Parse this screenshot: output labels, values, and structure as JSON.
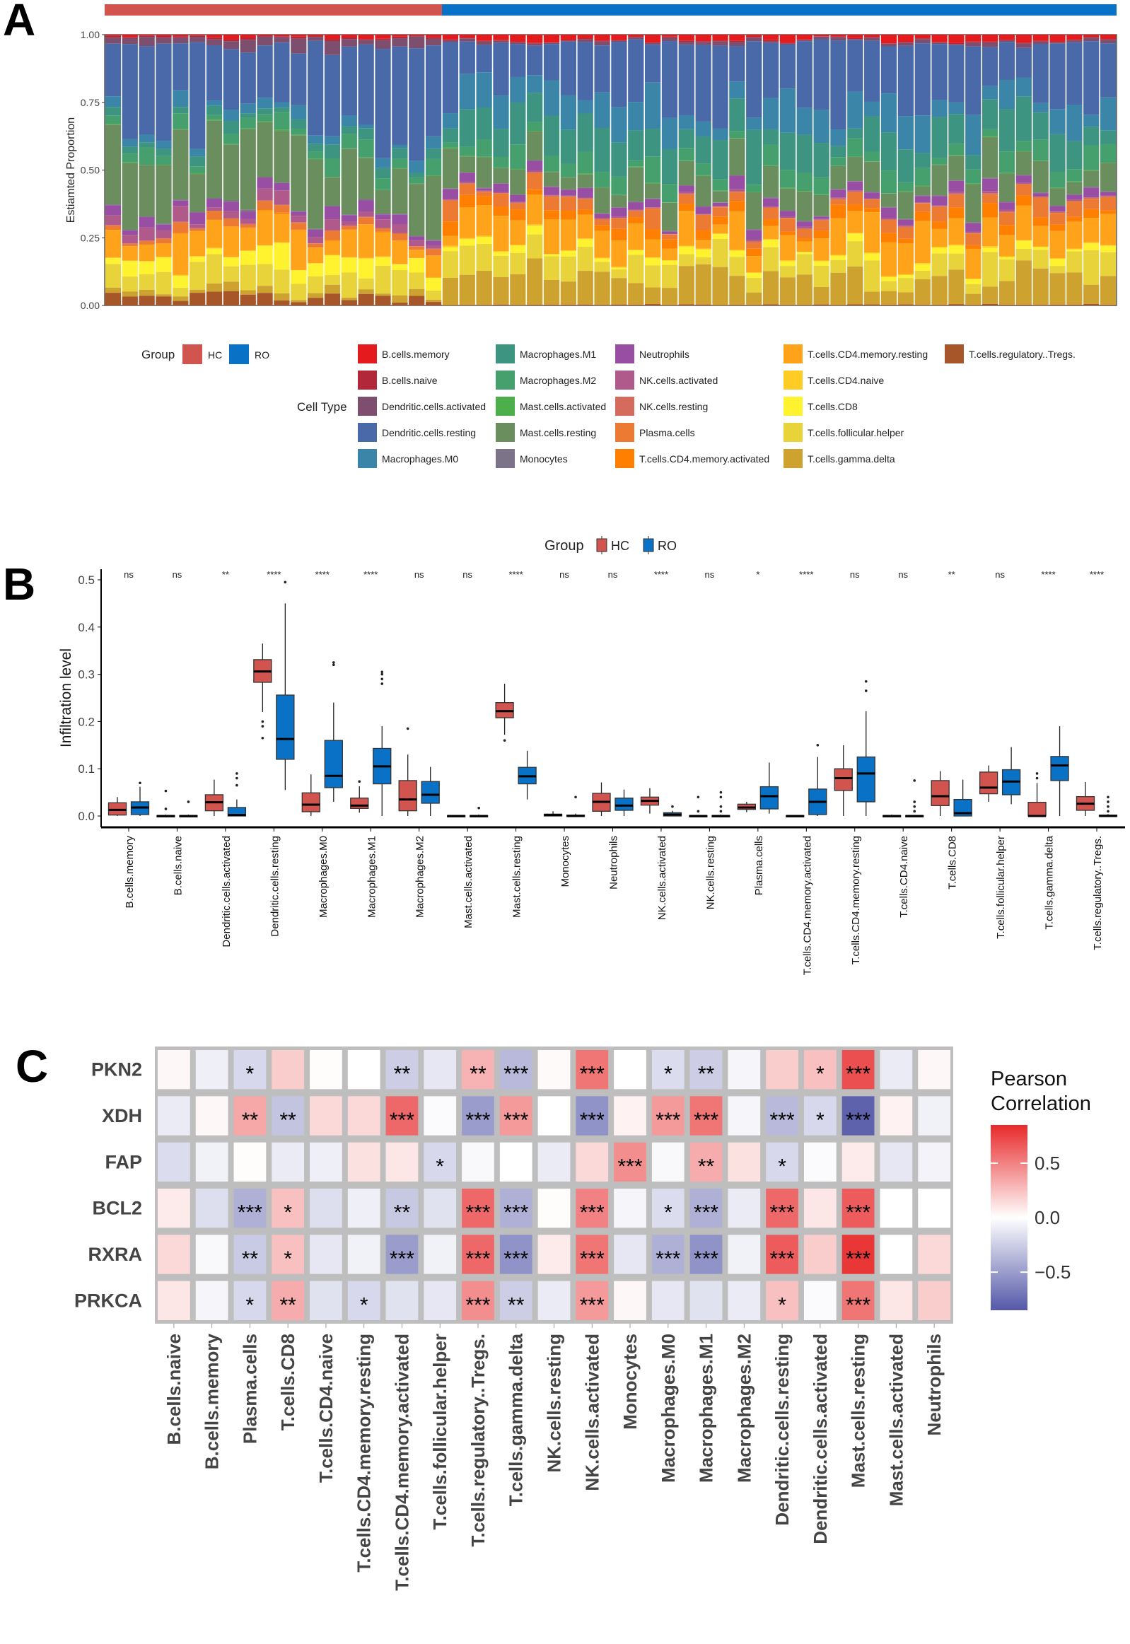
{
  "panel_letters": {
    "a": "A",
    "b": "B",
    "c": "C"
  },
  "chart_data": [
    {
      "type": "bar",
      "stacked": true,
      "panel": "A",
      "ylabel": "Estiamted Proportion",
      "ylim": [
        0,
        1
      ],
      "yticks": [
        "0.00",
        "0.25",
        "0.50",
        "0.75",
        "1.00"
      ],
      "group_legend_title": "Group",
      "celltype_legend_title": "Cell Type",
      "groups": [
        {
          "name": "HC",
          "color": "#D2544E",
          "n_samples": 20
        },
        {
          "name": "RO",
          "color": "#0A72C6",
          "n_samples": 40
        }
      ],
      "cell_types": [
        {
          "name": "B.cells.memory",
          "color": "#E41A1C",
          "hc": 0.01,
          "ro": 0.02
        },
        {
          "name": "B.cells.naive",
          "color": "#B2283A",
          "hc": 0.005,
          "ro": 0.003
        },
        {
          "name": "Dendritic.cells.activated",
          "color": "#7E4E6F",
          "hc": 0.03,
          "ro": 0.01
        },
        {
          "name": "Dendritic.cells.resting",
          "color": "#4A69A8",
          "hc": 0.31,
          "ro": 0.2
        },
        {
          "name": "Macrophages.M0",
          "color": "#3A85A8",
          "hc": 0.03,
          "ro": 0.1
        },
        {
          "name": "Macrophages.M1",
          "color": "#3D9480",
          "hc": 0.03,
          "ro": 0.11
        },
        {
          "name": "Macrophages.M2",
          "color": "#46A06E",
          "hc": 0.04,
          "ro": 0.05
        },
        {
          "name": "Mast.cells.activated",
          "color": "#4DAF4A",
          "hc": 0.002,
          "ro": 0.002
        },
        {
          "name": "Mast.cells.resting",
          "color": "#6A8E5E",
          "hc": 0.22,
          "ro": 0.09
        },
        {
          "name": "Monocytes",
          "color": "#7D7389",
          "hc": 0.003,
          "ro": 0.002
        },
        {
          "name": "Neutrophils",
          "color": "#984EA3",
          "hc": 0.03,
          "ro": 0.025
        },
        {
          "name": "NK.cells.activated",
          "color": "#B05A8C",
          "hc": 0.03,
          "ro": 0.004
        },
        {
          "name": "NK.cells.resting",
          "color": "#D46B5C",
          "hc": 0.002,
          "ro": 0.003
        },
        {
          "name": "Plasma.cells",
          "color": "#EC7A32",
          "hc": 0.02,
          "ro": 0.045
        },
        {
          "name": "T.cells.CD4.memory.activated",
          "color": "#FF7F00",
          "hc": 0.002,
          "ro": 0.035
        },
        {
          "name": "T.cells.CD4.memory.resting",
          "color": "#FFA41A",
          "hc": 0.08,
          "ro": 0.09
        },
        {
          "name": "T.cells.CD4.naive",
          "color": "#FFCC26",
          "hc": 0.002,
          "ro": 0.003
        },
        {
          "name": "T.cells.CD8",
          "color": "#FFF22E",
          "hc": 0.05,
          "ro": 0.02
        },
        {
          "name": "T.cells.follicular.helper",
          "color": "#E8D43A",
          "hc": 0.07,
          "ro": 0.075
        },
        {
          "name": "T.cells.gamma.delta",
          "color": "#CDA22E",
          "hc": 0.02,
          "ro": 0.1
        },
        {
          "name": "T.cells.regulatory..Tregs.",
          "color": "#A65628",
          "hc": 0.03,
          "ro": 0.003
        }
      ]
    },
    {
      "type": "box",
      "panel": "B",
      "ylabel": "Infiltration level",
      "ylim": [
        0,
        0.5
      ],
      "yticks": [
        "0.0",
        "0.1",
        "0.2",
        "0.3",
        "0.4",
        "0.5"
      ],
      "legend": {
        "title": "Group",
        "position": "top",
        "items": [
          {
            "name": "HC",
            "color": "#D2544E"
          },
          {
            "name": "RO",
            "color": "#0A72C6"
          }
        ]
      },
      "stats_order": [
        "whisker_low",
        "q1",
        "median",
        "q3",
        "whisker_high"
      ],
      "categories": [
        {
          "name": "B.cells.memory",
          "sig": "ns",
          "hc": [
            0,
            0.002,
            0.013,
            0.028,
            0.04
          ],
          "hc_out": [],
          "ro": [
            0,
            0.003,
            0.018,
            0.03,
            0.062
          ],
          "ro_out": [
            0.07
          ]
        },
        {
          "name": "B.cells.naive",
          "sig": "ns",
          "hc": [
            0,
            0,
            0,
            0.001,
            0.003
          ],
          "hc_out": [
            0.015,
            0.053
          ],
          "ro": [
            0,
            0,
            0,
            0.001,
            0.003
          ],
          "ro_out": [
            0.03
          ]
        },
        {
          "name": "Dendritic.cells.activated",
          "sig": "**",
          "hc": [
            0,
            0.011,
            0.029,
            0.045,
            0.077
          ],
          "hc_out": [],
          "ro": [
            0,
            0,
            0.002,
            0.018,
            0.035
          ],
          "ro_out": [
            0.065,
            0.08,
            0.09
          ]
        },
        {
          "name": "Dendritic.cells.resting",
          "sig": "****",
          "hc": [
            0.22,
            0.283,
            0.306,
            0.331,
            0.365
          ],
          "hc_out": [
            0.165,
            0.19,
            0.2
          ],
          "ro": [
            0.055,
            0.12,
            0.163,
            0.256,
            0.45
          ],
          "ro_out": [
            0.495
          ]
        },
        {
          "name": "Macrophages.M0",
          "sig": "****",
          "hc": [
            0,
            0.009,
            0.024,
            0.049,
            0.088
          ],
          "hc_out": [],
          "ro": [
            0.03,
            0.06,
            0.085,
            0.16,
            0.24
          ],
          "ro_out": [
            0.32,
            0.325
          ]
        },
        {
          "name": "Macrophages.M1",
          "sig": "****",
          "hc": [
            0.007,
            0.016,
            0.022,
            0.038,
            0.063
          ],
          "hc_out": [
            0.073
          ],
          "ro": [
            0,
            0.068,
            0.105,
            0.143,
            0.19
          ],
          "ro_out": [
            0.28,
            0.29,
            0.3,
            0.305
          ]
        },
        {
          "name": "Macrophages.M2",
          "sig": "ns",
          "hc": [
            0,
            0.011,
            0.035,
            0.075,
            0.13
          ],
          "hc_out": [
            0.185
          ],
          "ro": [
            0,
            0.027,
            0.045,
            0.073,
            0.104
          ],
          "ro_out": []
        },
        {
          "name": "Mast.cells.activated",
          "sig": "ns",
          "hc": [
            0,
            0,
            0,
            0.001,
            0.002
          ],
          "hc_out": [],
          "ro": [
            0,
            0,
            0,
            0.001,
            0.003
          ],
          "ro_out": [
            0.017
          ]
        },
        {
          "name": "Mast.cells.resting",
          "sig": "****",
          "hc": [
            0.172,
            0.208,
            0.222,
            0.24,
            0.28
          ],
          "hc_out": [
            0.16
          ],
          "ro": [
            0.035,
            0.068,
            0.084,
            0.103,
            0.138
          ],
          "ro_out": []
        },
        {
          "name": "Monocytes",
          "sig": "ns",
          "hc": [
            0,
            0,
            0.002,
            0.004,
            0.01
          ],
          "hc_out": [],
          "ro": [
            0,
            0,
            0,
            0.002,
            0.005
          ],
          "ro_out": [
            0.04
          ]
        },
        {
          "name": "Neutrophils",
          "sig": "ns",
          "hc": [
            0,
            0.01,
            0.03,
            0.048,
            0.071
          ],
          "hc_out": [],
          "ro": [
            0,
            0.012,
            0.022,
            0.038,
            0.056
          ],
          "ro_out": []
        },
        {
          "name": "NK.cells.activated",
          "sig": "****",
          "hc": [
            0.005,
            0.023,
            0.032,
            0.04,
            0.059
          ],
          "hc_out": [],
          "ro": [
            0,
            0,
            0.003,
            0.007,
            0.011
          ],
          "ro_out": [
            0.02
          ]
        },
        {
          "name": "NK.cells.resting",
          "sig": "ns",
          "hc": [
            0,
            0,
            0,
            0.001,
            0.002
          ],
          "hc_out": [
            0.01,
            0.04
          ],
          "ro": [
            0,
            0,
            0,
            0.001,
            0.003
          ],
          "ro_out": [
            0.01,
            0.02,
            0.04,
            0.05
          ]
        },
        {
          "name": "Plasma.cells",
          "sig": "*",
          "hc": [
            0.008,
            0.014,
            0.018,
            0.025,
            0.03
          ],
          "hc_out": [],
          "ro": [
            0.005,
            0.015,
            0.042,
            0.062,
            0.113
          ],
          "ro_out": []
        },
        {
          "name": "T.cells.CD4.memory.activated",
          "sig": "****",
          "hc": [
            0,
            0,
            0,
            0.001,
            0.002
          ],
          "hc_out": [],
          "ro": [
            0,
            0.003,
            0.03,
            0.057,
            0.125
          ],
          "ro_out": [
            0.15
          ]
        },
        {
          "name": "T.cells.CD4.memory.resting",
          "sig": "ns",
          "hc": [
            0,
            0.054,
            0.08,
            0.1,
            0.15
          ],
          "hc_out": [],
          "ro": [
            0,
            0.03,
            0.09,
            0.125,
            0.222
          ],
          "ro_out": [
            0.265,
            0.285
          ]
        },
        {
          "name": "T.cells.CD4.naive",
          "sig": "ns",
          "hc": [
            0,
            0,
            0,
            0.001,
            0.003
          ],
          "hc_out": [],
          "ro": [
            0,
            0,
            0,
            0.001,
            0.002
          ],
          "ro_out": [
            0.01,
            0.02,
            0.03,
            0.075
          ]
        },
        {
          "name": "T.cells.CD8",
          "sig": "**",
          "hc": [
            0,
            0.022,
            0.042,
            0.075,
            0.095
          ],
          "hc_out": [],
          "ro": [
            0,
            0,
            0.006,
            0.035,
            0.077
          ],
          "ro_out": []
        },
        {
          "name": "T.cells.follicular.helper",
          "sig": "ns",
          "hc": [
            0.03,
            0.047,
            0.06,
            0.093,
            0.107
          ],
          "hc_out": [],
          "ro": [
            0.025,
            0.045,
            0.073,
            0.098,
            0.146
          ],
          "ro_out": []
        },
        {
          "name": "T.cells.gamma.delta",
          "sig": "****",
          "hc": [
            0,
            0,
            0,
            0.029,
            0.07
          ],
          "hc_out": [
            0.08,
            0.09
          ],
          "ro": [
            0,
            0.075,
            0.107,
            0.126,
            0.19
          ],
          "ro_out": []
        },
        {
          "name": "T.cells.regulatory..Tregs.",
          "sig": "****",
          "hc": [
            0,
            0.012,
            0.026,
            0.041,
            0.072
          ],
          "hc_out": [],
          "ro": [
            0,
            0,
            0,
            0.002,
            0.004
          ],
          "ro_out": [
            0.01,
            0.02,
            0.03,
            0.04
          ]
        }
      ]
    },
    {
      "type": "heatmap",
      "panel": "C",
      "legend_title": [
        "Pearson",
        "Correlation"
      ],
      "legend_ticks": [
        {
          "value": 0.5,
          "label": "0.5"
        },
        {
          "value": 0,
          "label": "0.0"
        },
        {
          "value": -0.5,
          "label": "−0.5"
        }
      ],
      "range": [
        -0.85,
        0.85
      ],
      "colors": {
        "low": "#5458A8",
        "mid": "#FFFFFF",
        "high": "#E8292A",
        "grid": "#BEBEBE"
      },
      "rows": [
        "PKN2",
        "XDH",
        "FAP",
        "BCL2",
        "RXRA",
        "PRKCA"
      ],
      "columns": [
        "B.cells.naive",
        "B.cells.memory",
        "Plasma.cells",
        "T.cells.CD8",
        "T.cells.CD4.naive",
        "T.cells.CD4.memory.resting",
        "T.cells.CD4.memory.activated",
        "T.cells.follicular.helper",
        "T.cells.regulatory..Tregs.",
        "T.cells.gamma.delta",
        "NK.cells.resting",
        "NK.cells.activated",
        "Monocytes",
        "Macrophages.M0",
        "Macrophages.M1",
        "Macrophages.M2",
        "Dendritic.cells.resting",
        "Dendritic.cells.activated",
        "Mast.cells.resting",
        "Mast.cells.activated",
        "Neutrophils"
      ],
      "values": [
        [
          0.03,
          -0.08,
          -0.2,
          0.2,
          0.01,
          0.0,
          -0.25,
          -0.12,
          0.3,
          -0.35,
          0.02,
          0.55,
          0.0,
          -0.18,
          -0.25,
          -0.05,
          0.2,
          0.25,
          0.7,
          -0.1,
          0.03
        ],
        [
          -0.1,
          0.03,
          0.35,
          -0.3,
          0.15,
          0.15,
          0.6,
          -0.02,
          -0.5,
          0.4,
          0.0,
          -0.55,
          0.05,
          0.4,
          0.55,
          -0.05,
          -0.35,
          -0.2,
          -0.8,
          0.05,
          -0.07
        ],
        [
          -0.18,
          -0.07,
          0.01,
          -0.1,
          -0.08,
          0.12,
          0.1,
          -0.2,
          -0.03,
          0.0,
          -0.1,
          0.15,
          0.45,
          -0.03,
          0.33,
          0.12,
          -0.2,
          -0.02,
          0.08,
          -0.12,
          -0.06
        ],
        [
          0.08,
          -0.17,
          -0.4,
          0.25,
          -0.17,
          -0.08,
          -0.28,
          -0.15,
          0.6,
          -0.4,
          0.01,
          0.5,
          -0.05,
          -0.18,
          -0.4,
          -0.1,
          0.6,
          0.1,
          0.65,
          0.0,
          0.0
        ],
        [
          0.15,
          -0.03,
          -0.27,
          0.25,
          -0.12,
          -0.07,
          -0.5,
          -0.07,
          0.6,
          -0.55,
          0.08,
          0.55,
          -0.12,
          -0.4,
          -0.55,
          -0.07,
          0.65,
          0.2,
          0.8,
          0.0,
          0.15
        ],
        [
          0.1,
          -0.05,
          -0.2,
          0.33,
          -0.15,
          -0.2,
          -0.15,
          -0.12,
          0.45,
          -0.25,
          -0.1,
          0.4,
          0.03,
          -0.12,
          -0.15,
          -0.1,
          0.25,
          -0.02,
          0.55,
          0.1,
          0.2
        ]
      ],
      "stars": [
        [
          "",
          "",
          "*",
          "",
          "",
          "",
          "**",
          "",
          "**",
          "***",
          "",
          "***",
          "",
          "*",
          "**",
          "",
          "",
          "*",
          "***",
          "",
          ""
        ],
        [
          "",
          "",
          "**",
          "**",
          "",
          "",
          "***",
          "",
          "***",
          "***",
          "",
          "***",
          "",
          "***",
          "***",
          "",
          "***",
          "*",
          "***",
          "",
          ""
        ],
        [
          "",
          "",
          "",
          "",
          "",
          "",
          "",
          "*",
          "",
          "",
          "",
          "",
          "***",
          "",
          "**",
          "",
          "*",
          "",
          "",
          "",
          ""
        ],
        [
          "",
          "",
          "***",
          "*",
          "",
          "",
          "**",
          "",
          "***",
          "***",
          "",
          "***",
          "",
          "*",
          "***",
          "",
          "***",
          "",
          "***",
          "",
          ""
        ],
        [
          "",
          "",
          "**",
          "*",
          "",
          "",
          "***",
          "",
          "***",
          "***",
          "",
          "***",
          "",
          "***",
          "***",
          "",
          "***",
          "",
          "***",
          "",
          ""
        ],
        [
          "",
          "",
          "*",
          "**",
          "",
          "*",
          "",
          "",
          "***",
          "**",
          "",
          "***",
          "",
          "",
          "",
          "",
          "*",
          "",
          "***",
          "",
          ""
        ]
      ]
    }
  ]
}
